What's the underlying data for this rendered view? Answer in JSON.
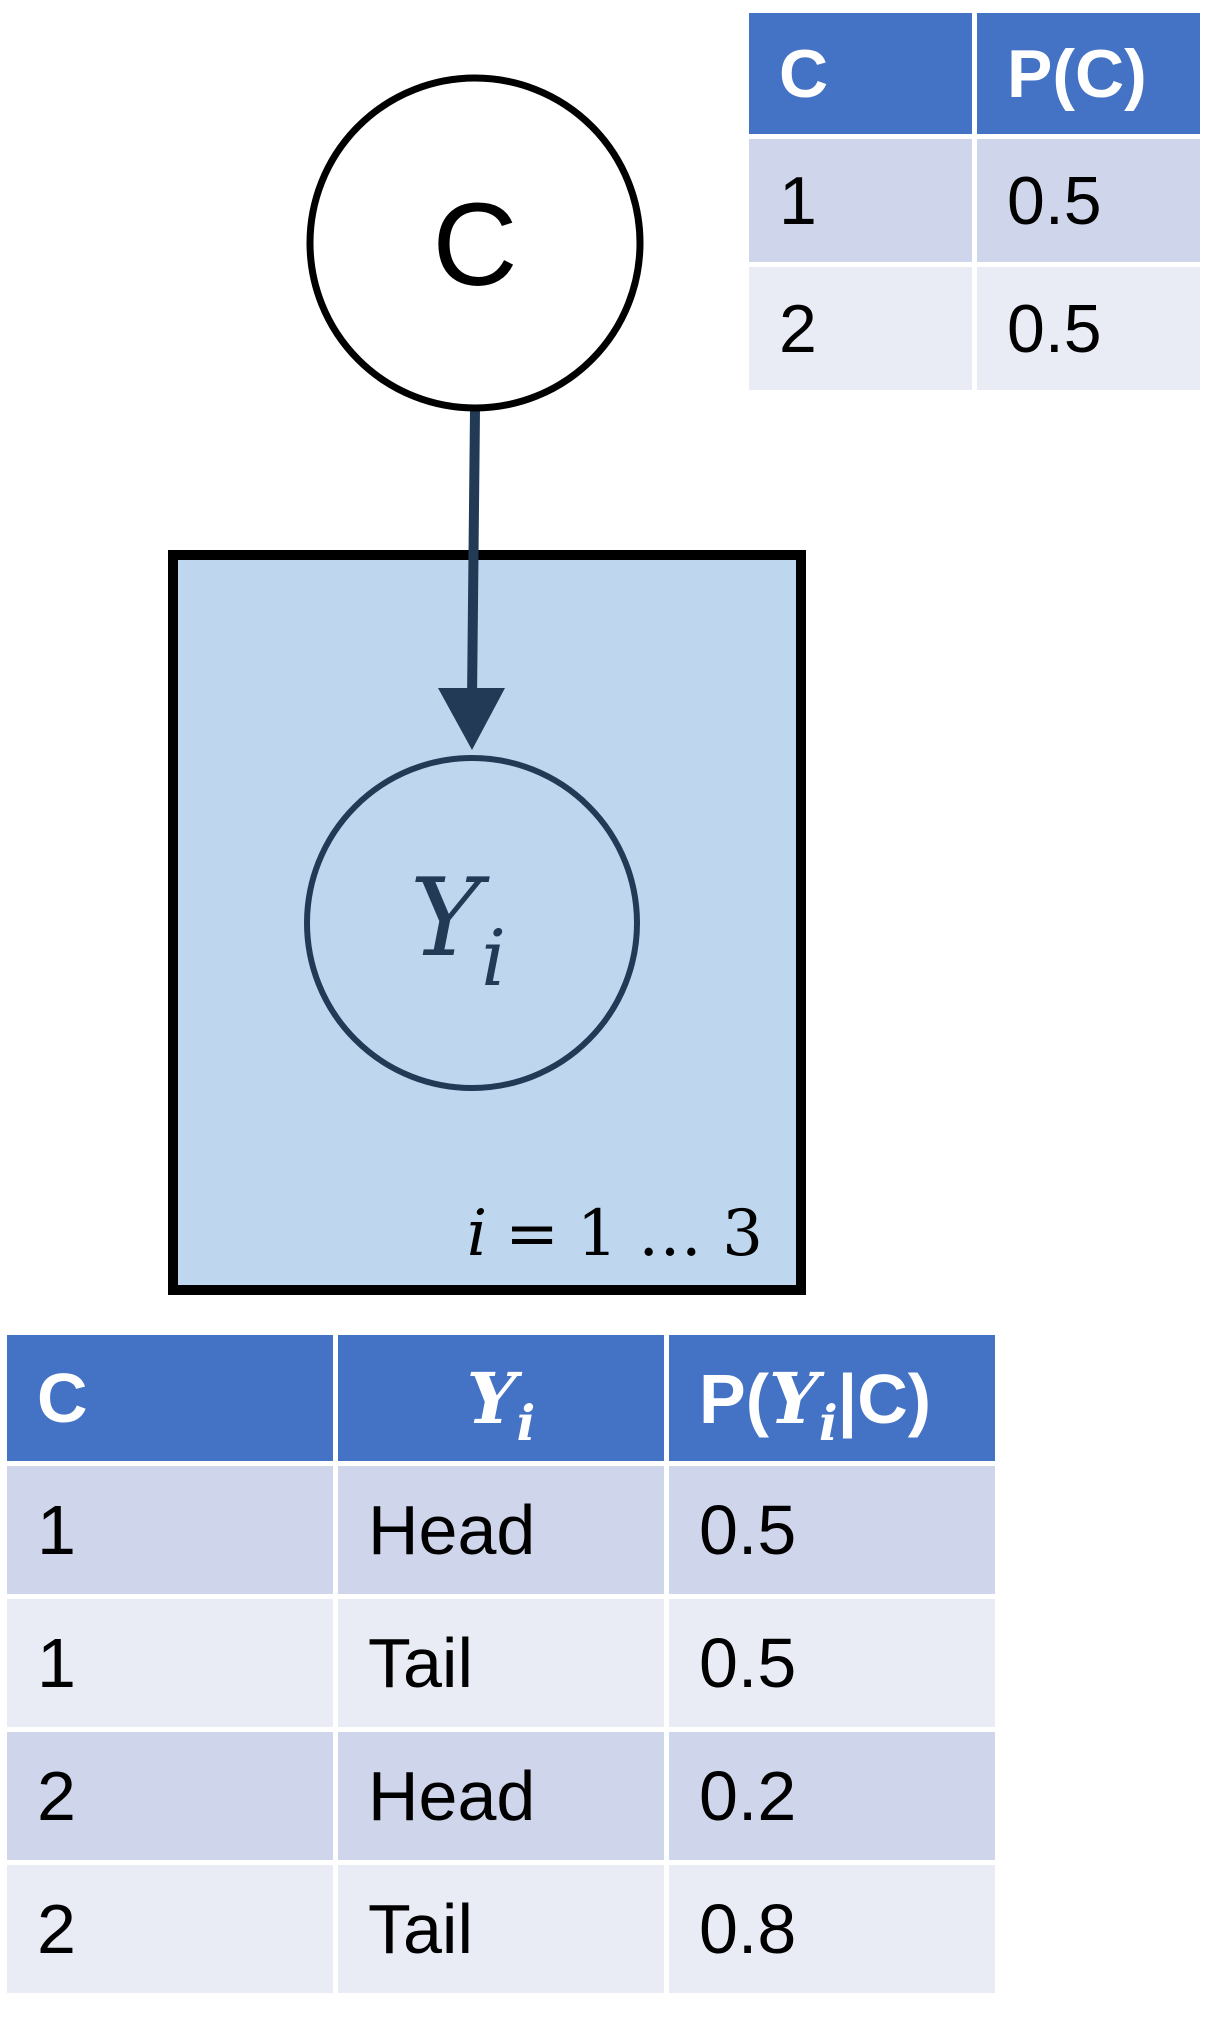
{
  "graph": {
    "parent_node_label": "C",
    "child_node_symbol": "Y",
    "child_node_subscript": "i",
    "plate_variable": "i",
    "plate_equals": "=",
    "plate_range": "1 … 3"
  },
  "prior_table": {
    "headers": [
      "C",
      "P(C)"
    ],
    "rows": [
      {
        "c": "1",
        "p": "0.5"
      },
      {
        "c": "2",
        "p": "0.5"
      }
    ]
  },
  "conditional_table": {
    "header_c": "C",
    "header_y_symbol": "Y",
    "header_y_subscript": "i",
    "header_p_prefix": "P(",
    "header_p_symbol": "Y",
    "header_p_subscript": "i",
    "header_p_suffix": "|C)",
    "rows": [
      {
        "c": "1",
        "y": "Head",
        "p": "0.5"
      },
      {
        "c": "1",
        "y": "Tail",
        "p": "0.5"
      },
      {
        "c": "2",
        "y": "Head",
        "p": "0.2"
      },
      {
        "c": "2",
        "y": "Tail",
        "p": "0.8"
      }
    ]
  },
  "colors": {
    "header_blue": "#4472c4",
    "row_dark": "#cfd5ea",
    "row_light": "#e9ebf5",
    "plate_fill": "#bfd7ee",
    "arrow": "#233a56"
  }
}
